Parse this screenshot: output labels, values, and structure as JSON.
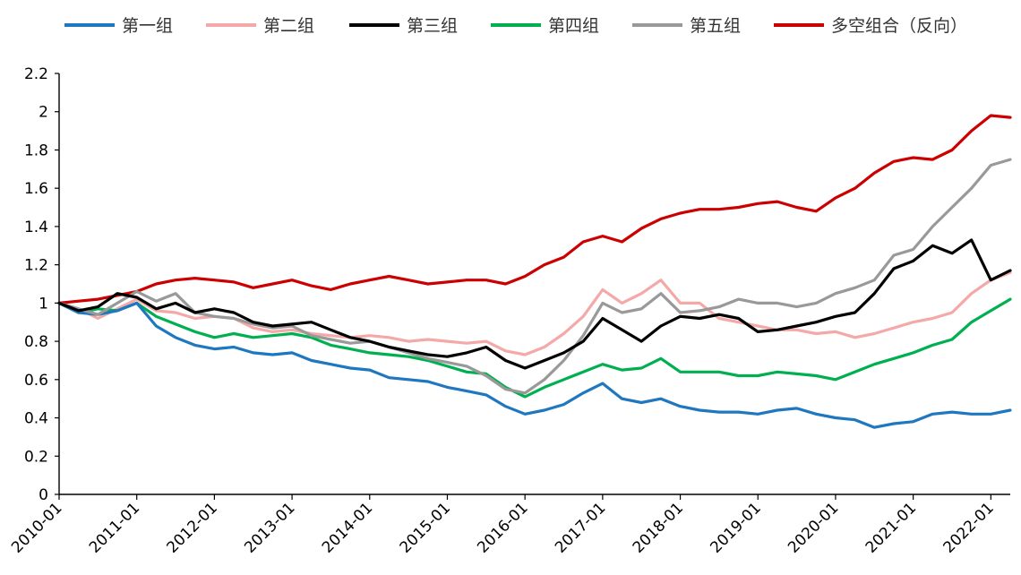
{
  "chart_data": {
    "type": "line",
    "title": "",
    "xlabel": "",
    "ylabel": "",
    "ylim": [
      0,
      2.2
    ],
    "yticks": [
      0,
      0.2,
      0.4,
      0.6,
      0.8,
      1,
      1.2,
      1.4,
      1.6,
      1.8,
      2,
      2.2
    ],
    "ytick_labels": [
      "0",
      "0.2",
      "0.4",
      "0.6",
      "0.8",
      "1",
      "1.2",
      "1.4",
      "1.6",
      "1.8",
      "2",
      "2.2"
    ],
    "xlim": [
      2010.0,
      2022.25
    ],
    "xticks": [
      2010,
      2011,
      2012,
      2013,
      2014,
      2015,
      2016,
      2017,
      2018,
      2019,
      2020,
      2021,
      2022
    ],
    "xtick_labels": [
      "2010-01",
      "2011-01",
      "2012-01",
      "2013-01",
      "2014-01",
      "2015-01",
      "2016-01",
      "2017-01",
      "2018-01",
      "2019-01",
      "2020-01",
      "2021-01",
      "2022-01"
    ],
    "grid": false,
    "legend_position": "top",
    "x": [
      2010.0,
      2010.25,
      2010.5,
      2010.75,
      2011.0,
      2011.25,
      2011.5,
      2011.75,
      2012.0,
      2012.25,
      2012.5,
      2012.75,
      2013.0,
      2013.25,
      2013.5,
      2013.75,
      2014.0,
      2014.25,
      2014.5,
      2014.75,
      2015.0,
      2015.25,
      2015.5,
      2015.75,
      2016.0,
      2016.25,
      2016.5,
      2016.75,
      2017.0,
      2017.25,
      2017.5,
      2017.75,
      2018.0,
      2018.25,
      2018.5,
      2018.75,
      2019.0,
      2019.25,
      2019.5,
      2019.75,
      2020.0,
      2020.25,
      2020.5,
      2020.75,
      2021.0,
      2021.25,
      2021.5,
      2021.75,
      2022.0,
      2022.25
    ],
    "series": [
      {
        "name": "第一组",
        "color": "#1f77c0",
        "values": [
          1.0,
          0.95,
          0.94,
          0.96,
          1.0,
          0.88,
          0.82,
          0.78,
          0.76,
          0.77,
          0.74,
          0.73,
          0.74,
          0.7,
          0.68,
          0.66,
          0.65,
          0.61,
          0.6,
          0.59,
          0.56,
          0.54,
          0.52,
          0.46,
          0.42,
          0.44,
          0.47,
          0.53,
          0.58,
          0.5,
          0.48,
          0.5,
          0.46,
          0.44,
          0.43,
          0.43,
          0.42,
          0.44,
          0.45,
          0.42,
          0.4,
          0.39,
          0.35,
          0.37,
          0.38,
          0.42,
          0.43,
          0.42,
          0.42,
          0.44
        ]
      },
      {
        "name": "第二组",
        "color": "#f4a9a8",
        "values": [
          1.0,
          0.97,
          0.92,
          0.97,
          1.02,
          0.96,
          0.95,
          0.92,
          0.93,
          0.92,
          0.87,
          0.85,
          0.86,
          0.84,
          0.83,
          0.82,
          0.83,
          0.82,
          0.8,
          0.81,
          0.8,
          0.79,
          0.8,
          0.75,
          0.73,
          0.77,
          0.84,
          0.93,
          1.07,
          1.0,
          1.05,
          1.12,
          1.0,
          1.0,
          0.92,
          0.9,
          0.88,
          0.86,
          0.86,
          0.84,
          0.85,
          0.82,
          0.84,
          0.87,
          0.9,
          0.92,
          0.95,
          1.05,
          1.12,
          1.16
        ]
      },
      {
        "name": "第三组",
        "color": "#000000",
        "values": [
          1.0,
          0.96,
          0.98,
          1.05,
          1.03,
          0.97,
          1.0,
          0.95,
          0.97,
          0.95,
          0.9,
          0.88,
          0.89,
          0.9,
          0.86,
          0.82,
          0.8,
          0.77,
          0.75,
          0.73,
          0.72,
          0.74,
          0.77,
          0.7,
          0.66,
          0.7,
          0.74,
          0.8,
          0.92,
          0.86,
          0.8,
          0.88,
          0.93,
          0.92,
          0.94,
          0.92,
          0.85,
          0.86,
          0.88,
          0.9,
          0.93,
          0.95,
          1.05,
          1.18,
          1.22,
          1.3,
          1.26,
          1.33,
          1.12,
          1.17
        ]
      },
      {
        "name": "第四组",
        "color": "#00b050",
        "values": [
          1.0,
          0.95,
          0.97,
          0.96,
          1.0,
          0.93,
          0.89,
          0.85,
          0.82,
          0.84,
          0.82,
          0.83,
          0.84,
          0.82,
          0.78,
          0.76,
          0.74,
          0.73,
          0.72,
          0.7,
          0.67,
          0.64,
          0.63,
          0.56,
          0.51,
          0.56,
          0.6,
          0.64,
          0.68,
          0.65,
          0.66,
          0.71,
          0.64,
          0.64,
          0.64,
          0.62,
          0.62,
          0.64,
          0.63,
          0.62,
          0.6,
          0.64,
          0.68,
          0.71,
          0.74,
          0.78,
          0.81,
          0.9,
          0.96,
          1.02
        ]
      },
      {
        "name": "第五组",
        "color": "#999999",
        "values": [
          1.0,
          0.97,
          0.94,
          1.0,
          1.06,
          1.01,
          1.05,
          0.95,
          0.93,
          0.92,
          0.89,
          0.87,
          0.88,
          0.83,
          0.81,
          0.79,
          0.8,
          0.77,
          0.74,
          0.71,
          0.69,
          0.67,
          0.62,
          0.55,
          0.53,
          0.6,
          0.7,
          0.83,
          1.0,
          0.95,
          0.97,
          1.05,
          0.95,
          0.96,
          0.98,
          1.02,
          1.0,
          1.0,
          0.98,
          1.0,
          1.05,
          1.08,
          1.12,
          1.25,
          1.28,
          1.4,
          1.5,
          1.6,
          1.72,
          1.75
        ]
      },
      {
        "name": "多空组合（反向）",
        "color": "#cc0000",
        "values": [
          1.0,
          1.01,
          1.02,
          1.04,
          1.06,
          1.1,
          1.12,
          1.13,
          1.12,
          1.11,
          1.08,
          1.1,
          1.12,
          1.09,
          1.07,
          1.1,
          1.12,
          1.14,
          1.12,
          1.1,
          1.11,
          1.12,
          1.12,
          1.1,
          1.14,
          1.2,
          1.24,
          1.32,
          1.35,
          1.32,
          1.39,
          1.44,
          1.47,
          1.49,
          1.49,
          1.5,
          1.52,
          1.53,
          1.5,
          1.48,
          1.55,
          1.6,
          1.68,
          1.74,
          1.76,
          1.75,
          1.8,
          1.9,
          1.98,
          1.97
        ]
      }
    ]
  }
}
